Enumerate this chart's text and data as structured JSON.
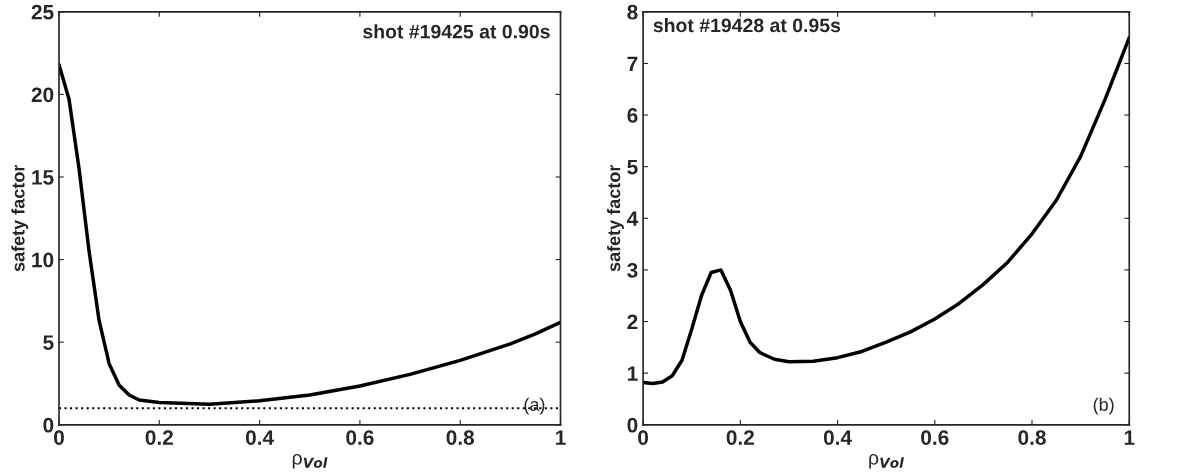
{
  "chart_data": [
    {
      "type": "line",
      "xlabel": "ρ$_{Vol}$",
      "ylabel": "safety factor",
      "xlim": [
        0,
        1
      ],
      "ylim": [
        0,
        25
      ],
      "xticks": [
        0,
        0.2,
        0.4,
        0.6,
        0.8,
        1
      ],
      "yticks": [
        0,
        5,
        10,
        15,
        20,
        25
      ],
      "grid": false,
      "line_style": "solid",
      "series": [
        {
          "color": "#000000",
          "x": [
            0,
            0.02,
            0.04,
            0.06,
            0.08,
            0.1,
            0.12,
            0.14,
            0.16,
            0.2,
            0.3,
            0.4,
            0.5,
            0.6,
            0.7,
            0.8,
            0.9,
            0.95,
            1
          ],
          "values": [
            21.8,
            19.7,
            15.5,
            10.5,
            6.3,
            3.7,
            2.4,
            1.8,
            1.5,
            1.35,
            1.25,
            1.45,
            1.8,
            2.35,
            3.05,
            3.9,
            4.9,
            5.5,
            6.2
          ]
        }
      ],
      "ref_lines": [
        {
          "axis": "y",
          "value": 1,
          "line_style": "dotted",
          "color": "#000000"
        }
      ],
      "annotations": [
        "shot #19425 at 0.90s",
        "(a)"
      ]
    },
    {
      "type": "line",
      "xlabel": "ρ$_{Vol}$",
      "ylabel": "safety factor",
      "xlim": [
        0,
        1
      ],
      "ylim": [
        0,
        8
      ],
      "xticks": [
        0,
        0.2,
        0.4,
        0.6,
        0.8,
        1
      ],
      "yticks": [
        0,
        1,
        2,
        3,
        4,
        5,
        6,
        7,
        8
      ],
      "grid": false,
      "line_style": "solid",
      "series": [
        {
          "color": "#000000",
          "x": [
            0,
            0.02,
            0.04,
            0.06,
            0.08,
            0.1,
            0.12,
            0.14,
            0.16,
            0.18,
            0.2,
            0.22,
            0.24,
            0.27,
            0.3,
            0.35,
            0.4,
            0.45,
            0.5,
            0.55,
            0.6,
            0.65,
            0.7,
            0.75,
            0.8,
            0.85,
            0.9,
            0.95,
            1
          ],
          "values": [
            0.82,
            0.8,
            0.83,
            0.95,
            1.25,
            1.85,
            2.5,
            2.95,
            3.0,
            2.6,
            2.0,
            1.6,
            1.4,
            1.27,
            1.22,
            1.23,
            1.3,
            1.42,
            1.6,
            1.8,
            2.05,
            2.35,
            2.72,
            3.15,
            3.7,
            4.35,
            5.2,
            6.3,
            7.5
          ]
        }
      ],
      "annotations": [
        "shot #19428 at 0.95s",
        "(b)"
      ]
    }
  ]
}
